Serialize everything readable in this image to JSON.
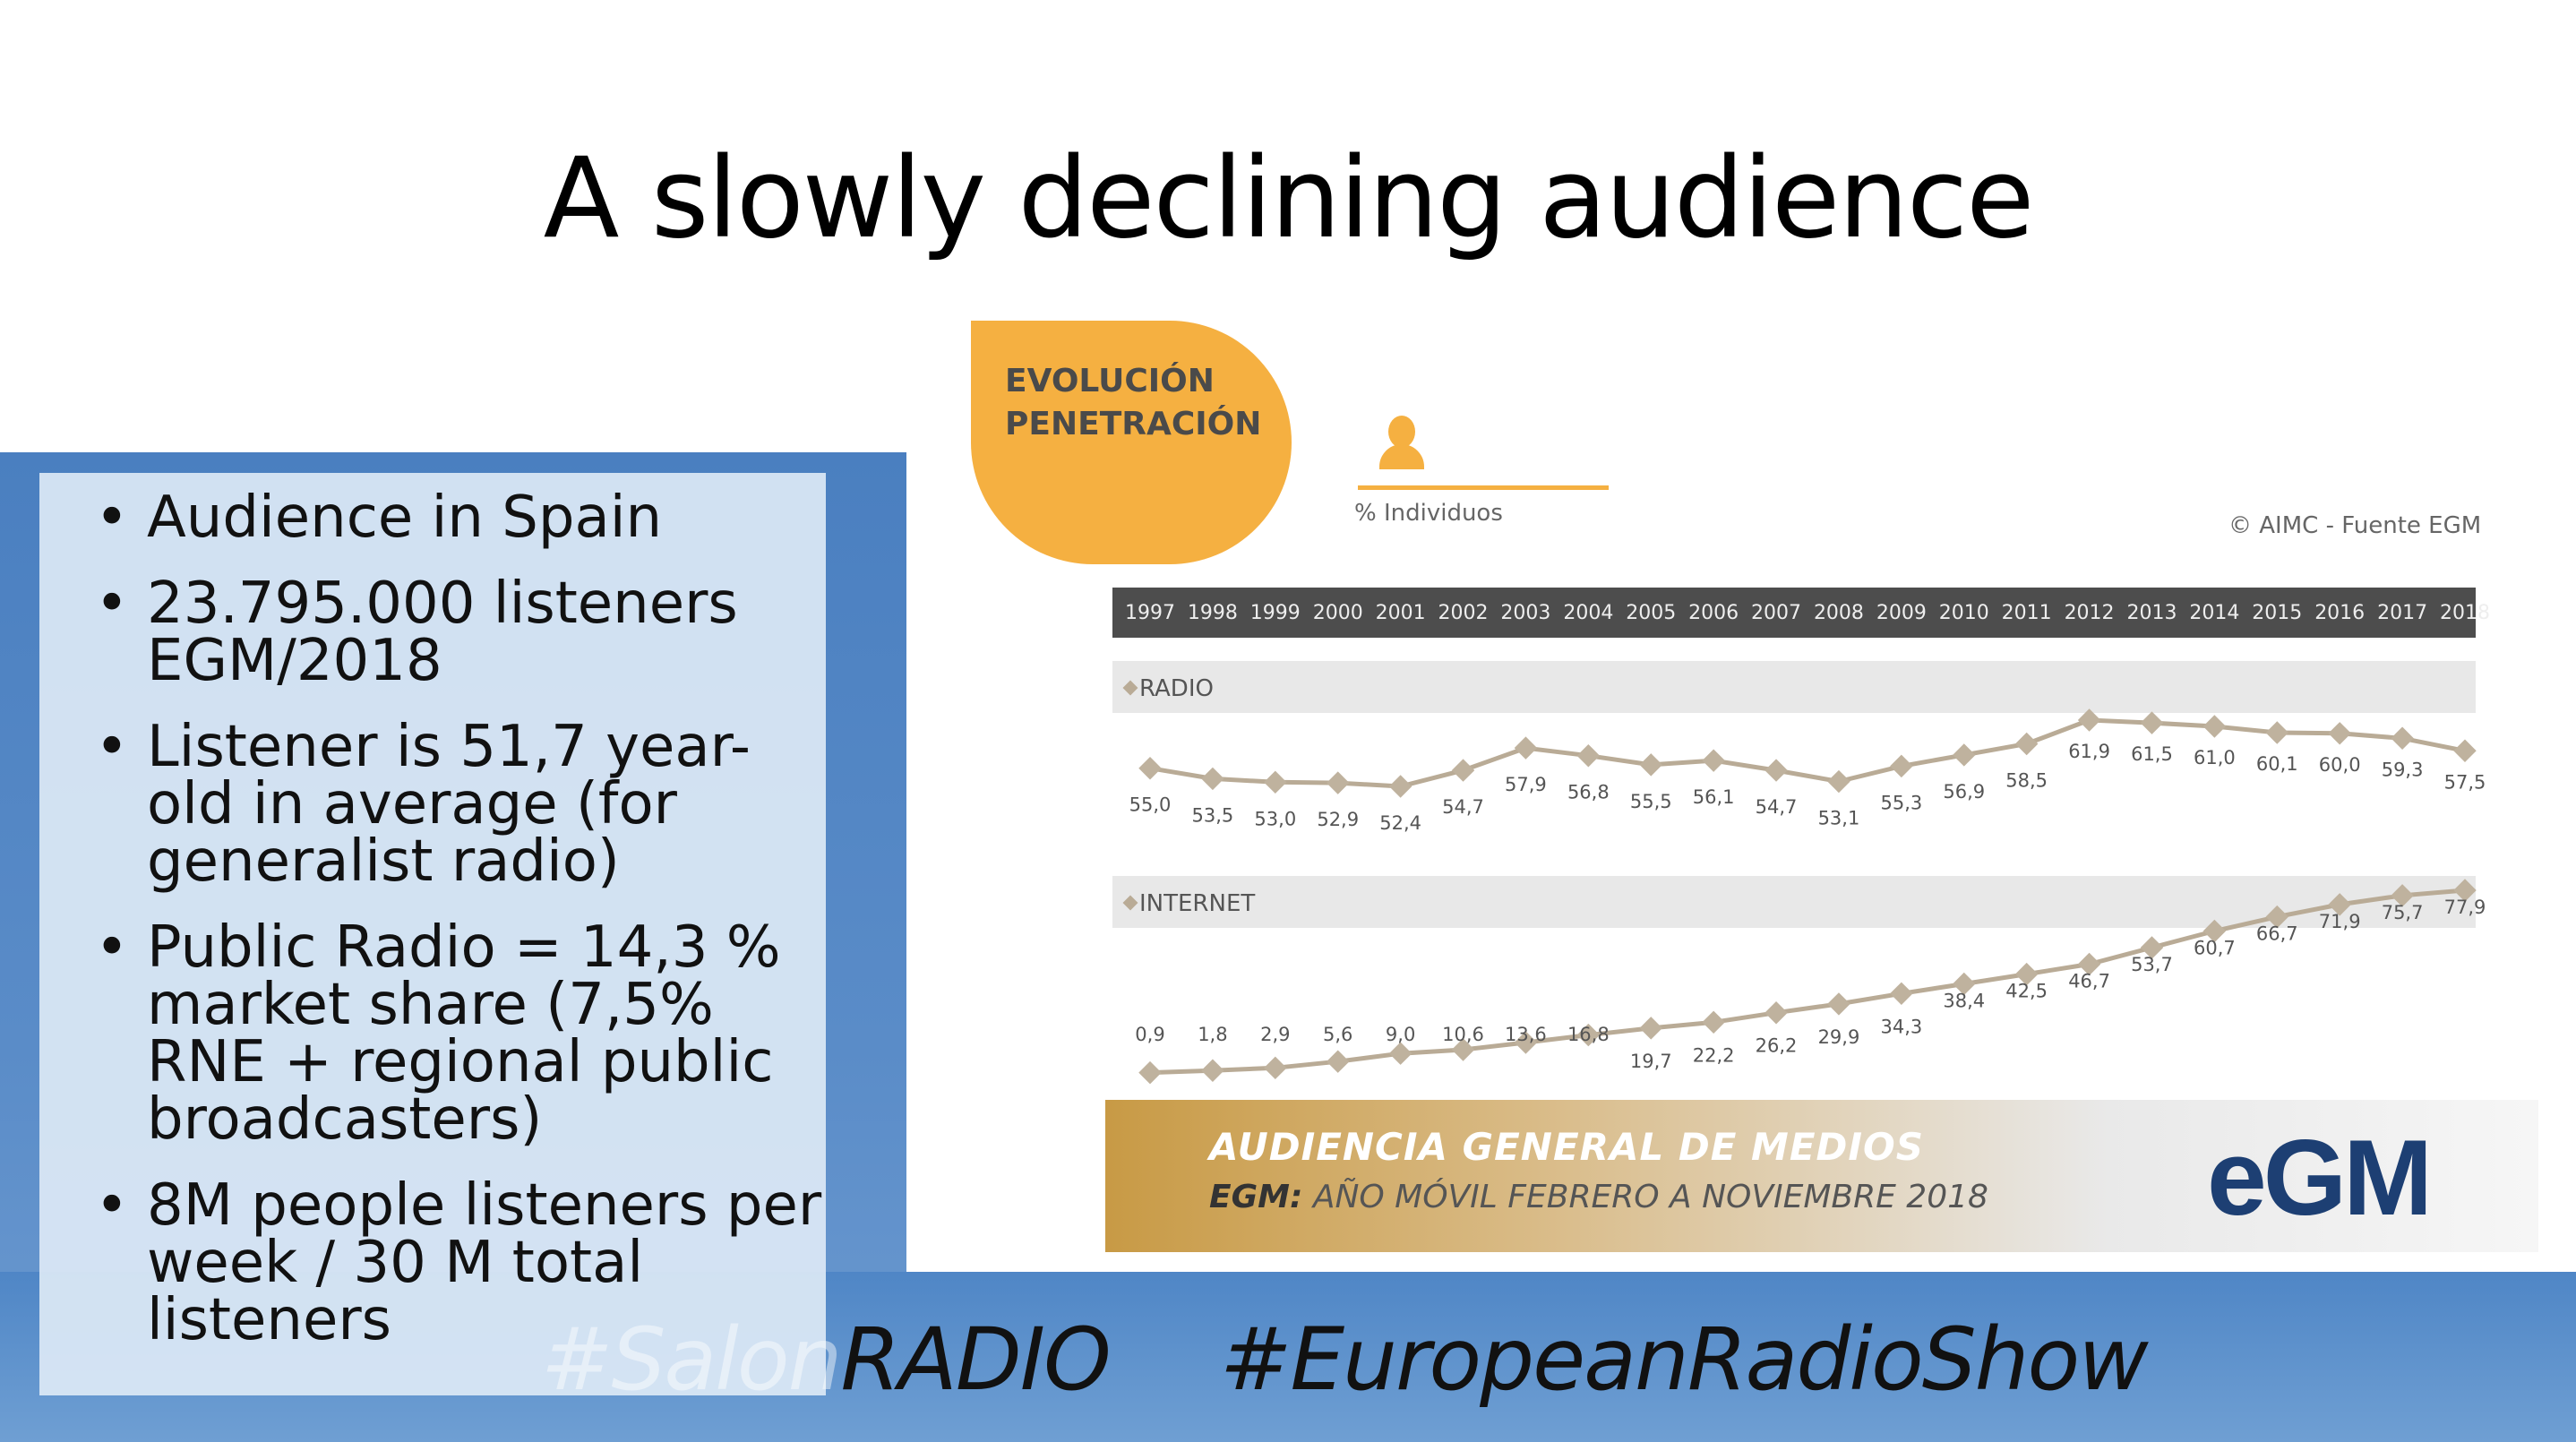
{
  "slide": {
    "title": "A slowly declining audience",
    "bullets": [
      "Audience in Spain",
      "23.795.000 listeners EGM/2018",
      "Listener is 51,7 year-old in average (for generalist radio)",
      "Public Radio = 14,3 % market share (7,5% RNE + regional public broadcasters)",
      "8M people listeners per week / 30 M total listeners"
    ],
    "hashtag_salon_ghost": "#Salon",
    "hashtag_salon_radio": "RADIO",
    "hashtag_european": "#EuropeanRadioShow"
  },
  "infographic": {
    "bubble_line1": "EVOLUCIÓN",
    "bubble_line2": "PENETRACIÓN",
    "unit_label": "% Individuos",
    "source": "© AIMC - Fuente EGM",
    "footer_title": "AUDIENCIA GENERAL DE MEDIOS",
    "footer_sub_bold": "EGM:",
    "footer_sub_rest": " AÑO MÓVIL FEBRERO A NOVIEMBRE 2018",
    "logo": "eGM",
    "colors": {
      "accent": "#f5b041",
      "line": "#b9ab96",
      "marker": "#bfb29e",
      "logo": "#1d3f73",
      "year_bar": "#4d4d4d"
    }
  },
  "chart_data": {
    "type": "line",
    "x": [
      "1997",
      "1998",
      "1999",
      "2000",
      "2001",
      "2002",
      "2003",
      "2004",
      "2005",
      "2006",
      "2007",
      "2008",
      "2009",
      "2010",
      "2011",
      "2012",
      "2013",
      "2014",
      "2015",
      "2016",
      "2017",
      "2018"
    ],
    "series": [
      {
        "name": "RADIO",
        "values": [
          55.0,
          53.5,
          53.0,
          52.9,
          52.4,
          54.7,
          57.9,
          56.8,
          55.5,
          56.1,
          54.7,
          53.1,
          55.3,
          56.9,
          58.5,
          61.9,
          61.5,
          61.0,
          60.1,
          60.0,
          59.3,
          57.5
        ],
        "labels": [
          "55,0",
          "53,5",
          "53,0",
          "52,9",
          "52,4",
          "54,7",
          "57,9",
          "56,8",
          "55,5",
          "56,1",
          "54,7",
          "53,1",
          "55,3",
          "56,9",
          "58,5",
          "61,9",
          "61,5",
          "61,0",
          "60,1",
          "60,0",
          "59,3",
          "57,5"
        ]
      },
      {
        "name": "INTERNET",
        "values": [
          0.9,
          1.8,
          2.9,
          5.6,
          9.0,
          10.6,
          13.6,
          16.8,
          19.7,
          22.2,
          26.2,
          29.9,
          34.3,
          38.4,
          42.5,
          46.7,
          53.7,
          60.7,
          66.7,
          71.9,
          75.7,
          77.9
        ],
        "labels": [
          "0,9",
          "1,8",
          "2,9",
          "5,6",
          "9,0",
          "10,6",
          "13,6",
          "16,8",
          "19,7",
          "22,2",
          "26,2",
          "29,9",
          "34,3",
          "38,4",
          "42,5",
          "46,7",
          "53,7",
          "60,7",
          "66,7",
          "71,9",
          "75,7",
          "77,9"
        ]
      }
    ],
    "ylabel": "% Individuos",
    "legend": "inline bands"
  }
}
